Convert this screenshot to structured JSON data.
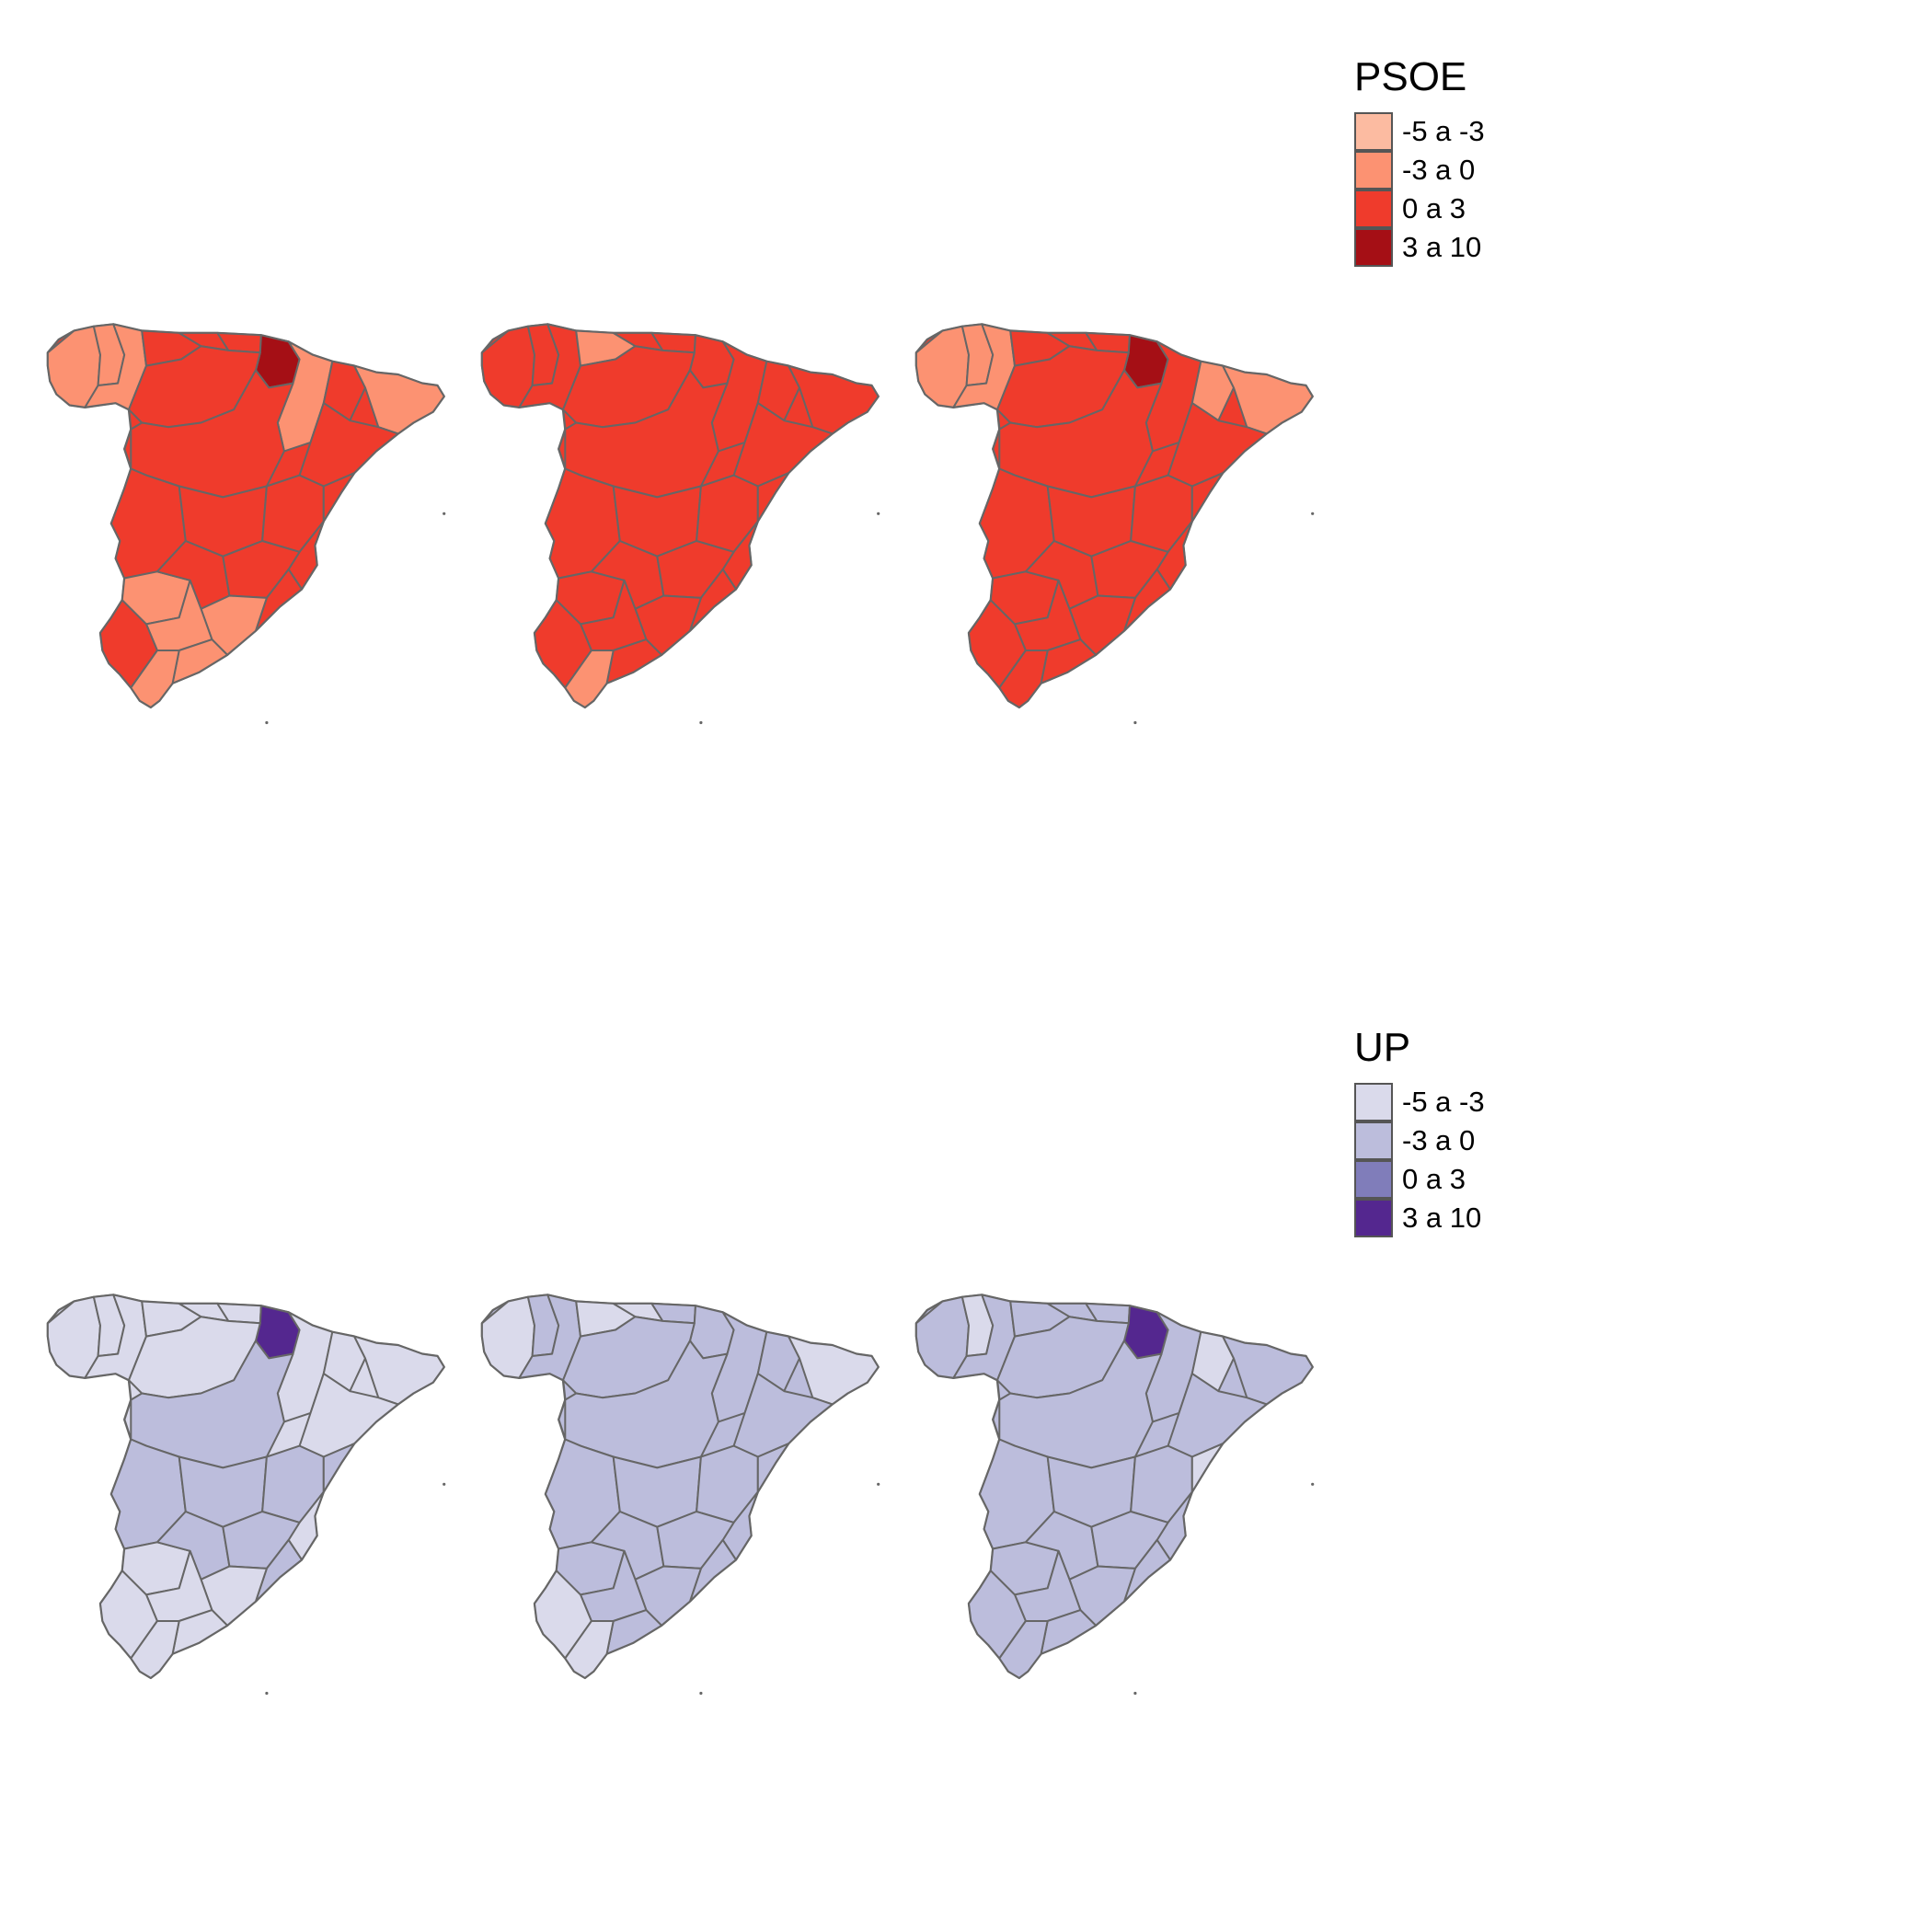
{
  "maps": [
    {
      "party": "PSOE",
      "legend": {
        "title": "PSOE",
        "items": [
          {
            "label": "-5 a -3",
            "color": "#fcbba1"
          },
          {
            "label": "-3 a 0",
            "color": "#fc9272"
          },
          {
            "label": "0 a 3",
            "color": "#ef3b2c"
          },
          {
            "label": "3 a 10",
            "color": "#a50f15"
          }
        ]
      },
      "panels": [
        {
          "highlight": "#a50f15",
          "base": "#ef3b2c",
          "accent": "#fc9272",
          "accent_regions": [
            "galicia-west",
            "galicia-coast",
            "leon-north",
            "zaragoza",
            "catalonia-east",
            "badajoz",
            "sevilla",
            "malaga",
            "granada",
            "cadiz"
          ]
        },
        {
          "highlight": null,
          "base": "#ef3b2c",
          "accent": "#fc9272",
          "accent_regions": [
            "asturias",
            "cadiz"
          ]
        },
        {
          "highlight": "#a50f15",
          "base": "#ef3b2c",
          "accent": "#fc9272",
          "accent_regions": [
            "galicia-west",
            "galicia-coast",
            "leon-north",
            "lleida",
            "catalonia-east"
          ]
        }
      ]
    },
    {
      "party": "UP",
      "legend": {
        "title": "UP",
        "items": [
          {
            "label": "-5 a -3",
            "color": "#dadaeb"
          },
          {
            "label": "-3 a 0",
            "color": "#bcbddc"
          },
          {
            "label": "0 a 3",
            "color": "#807dba"
          },
          {
            "label": "3 a 10",
            "color": "#54278f"
          }
        ]
      },
      "panels": [
        {
          "highlight": "#54278f",
          "base": "#dadaeb",
          "accent": "#bcbddc",
          "accent_regions": [
            "extremadura",
            "castile-center",
            "ciudad-real",
            "albacete",
            "cordoba",
            "jaen",
            "almeria",
            "valencia"
          ]
        },
        {
          "highlight": null,
          "base": "#bcbddc",
          "accent": "#dadaeb",
          "accent_regions": [
            "galicia-west",
            "asturias",
            "cantabria",
            "catalonia-east",
            "huelva",
            "cadiz"
          ]
        },
        {
          "highlight": "#54278f",
          "base": "#bcbddc",
          "accent": "#dadaeb",
          "accent_regions": [
            "galicia-coast",
            "lleida",
            "valencia"
          ]
        }
      ]
    }
  ]
}
